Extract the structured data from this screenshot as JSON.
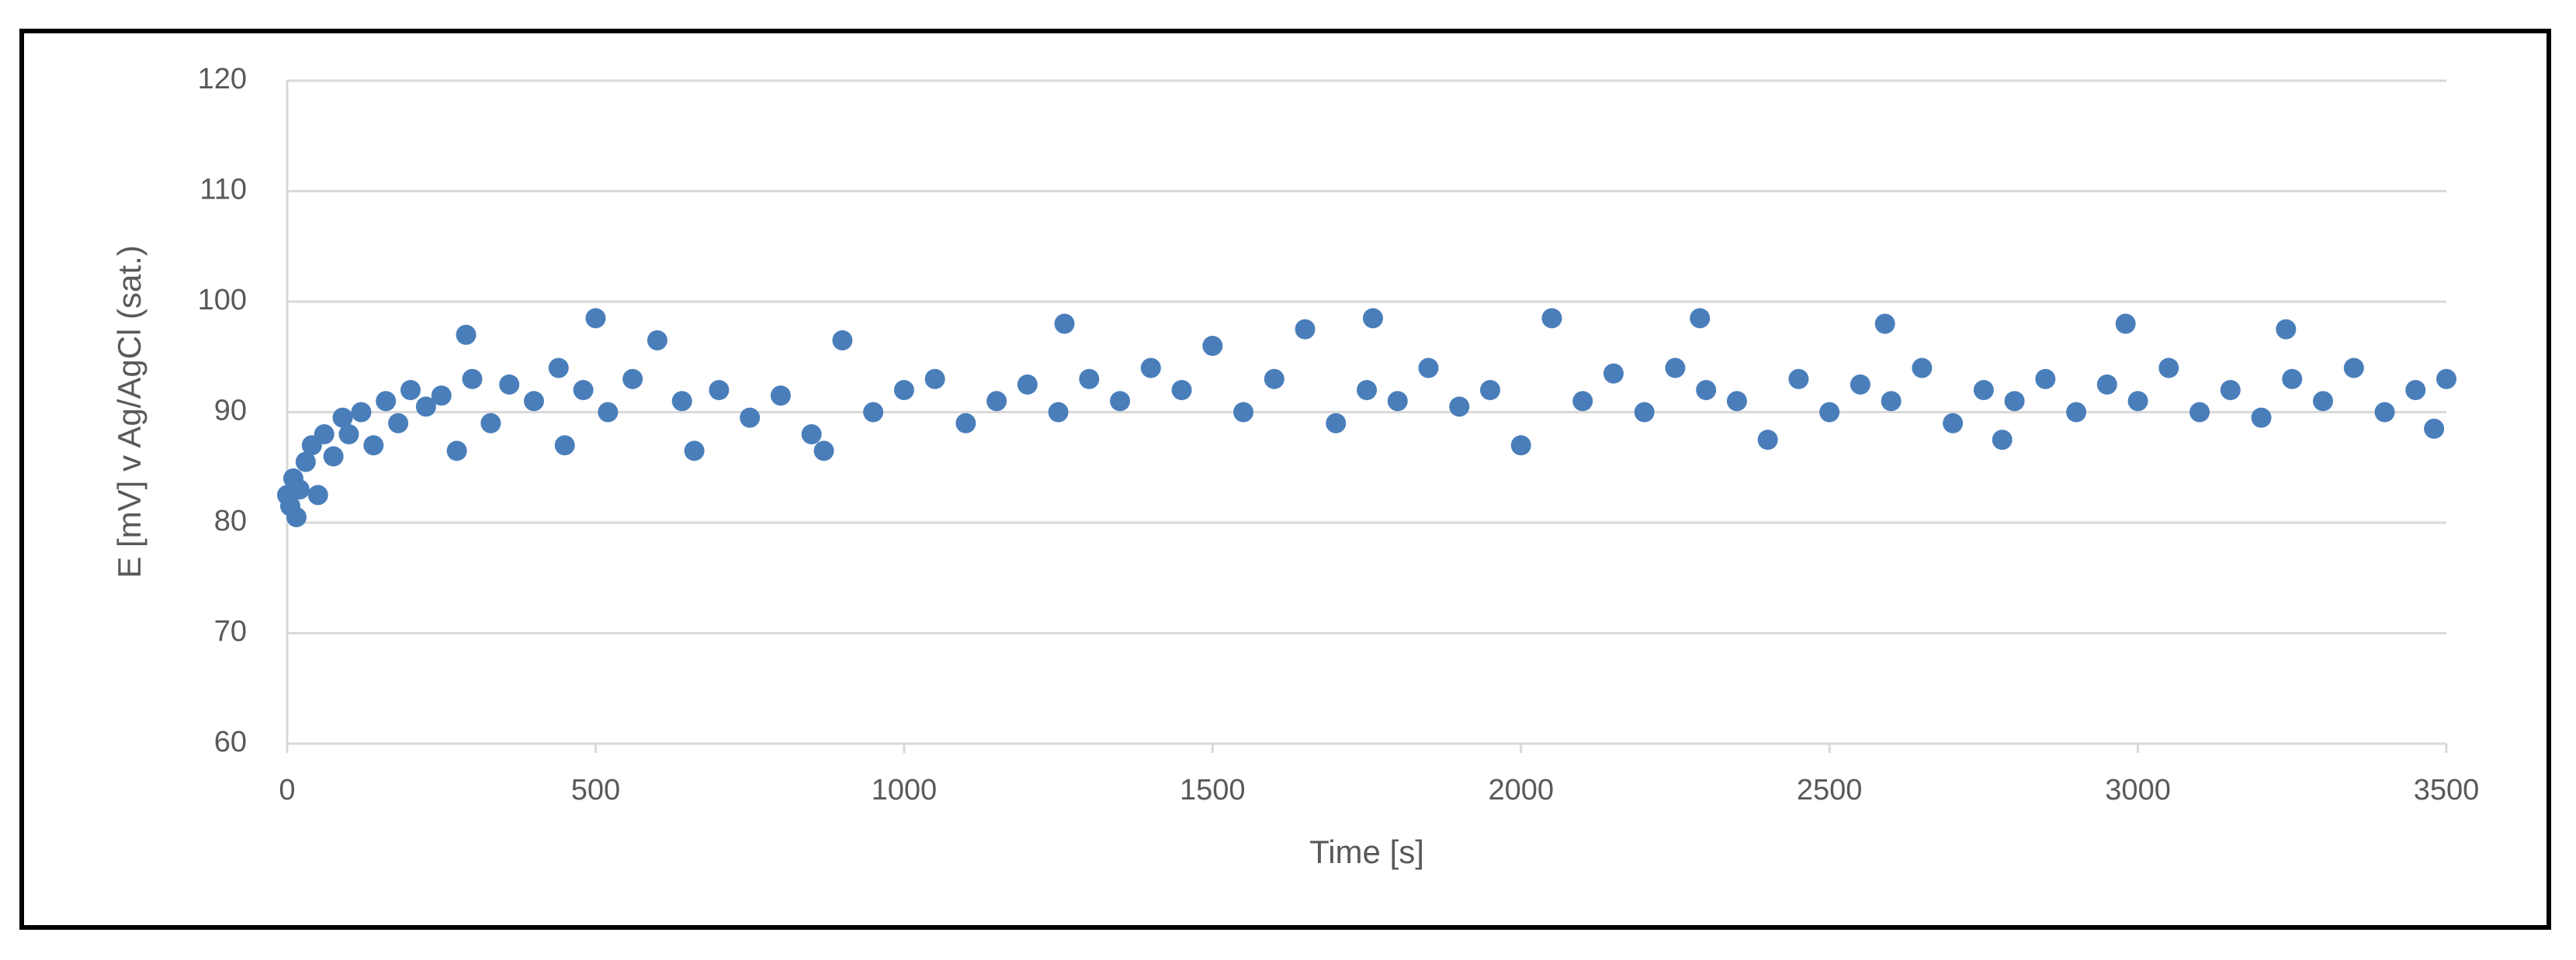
{
  "chart_data": {
    "type": "scatter",
    "xlabel": "Time [s]",
    "ylabel": "E [mV] v Ag/AgCl (sat.)",
    "color": "#4a7ebb",
    "grid": true,
    "xlim": [
      0,
      3500
    ],
    "xticks": [
      0,
      500,
      1000,
      1500,
      2000,
      2500,
      3000,
      3500
    ],
    "ylim": [
      60,
      120
    ],
    "yticks": [
      60,
      70,
      80,
      90,
      100,
      110,
      120
    ],
    "x": [
      0,
      5,
      10,
      15,
      20,
      30,
      40,
      50,
      60,
      75,
      90,
      100,
      120,
      140,
      160,
      180,
      200,
      225,
      250,
      275,
      290,
      300,
      330,
      360,
      400,
      440,
      450,
      480,
      500,
      520,
      560,
      600,
      640,
      660,
      700,
      750,
      800,
      850,
      870,
      900,
      950,
      1000,
      1050,
      1100,
      1150,
      1200,
      1250,
      1260,
      1300,
      1350,
      1400,
      1450,
      1500,
      1550,
      1600,
      1650,
      1700,
      1750,
      1760,
      1800,
      1850,
      1900,
      1950,
      2000,
      2050,
      2100,
      2150,
      2200,
      2250,
      2290,
      2300,
      2350,
      2400,
      2450,
      2500,
      2550,
      2590,
      2600,
      2650,
      2700,
      2750,
      2780,
      2800,
      2850,
      2900,
      2950,
      2980,
      3000,
      3050,
      3100,
      3150,
      3200,
      3240,
      3250,
      3300,
      3350,
      3400,
      3450,
      3480,
      3500
    ],
    "values": [
      82.5,
      81.5,
      84,
      80.5,
      83,
      85.5,
      87,
      82.5,
      88,
      86,
      89.5,
      88,
      90,
      87,
      91,
      89,
      92,
      90.5,
      91.5,
      86.5,
      97,
      93,
      89,
      92.5,
      91,
      94,
      87,
      92,
      98.5,
      90,
      93,
      96.5,
      91,
      86.5,
      92,
      89.5,
      91.5,
      88,
      86.5,
      96.5,
      90,
      92,
      93,
      89,
      91,
      92.5,
      90,
      98,
      93,
      91,
      94,
      92,
      96,
      90,
      93,
      97.5,
      89,
      92,
      98.5,
      91,
      94,
      90.5,
      92,
      87,
      98.5,
      91,
      93.5,
      90,
      94,
      98.5,
      92,
      91,
      87.5,
      93,
      90,
      92.5,
      98,
      91,
      94,
      89,
      92,
      87.5,
      91,
      93,
      90,
      92.5,
      98,
      91,
      94,
      90,
      92,
      89.5,
      97.5,
      93,
      91,
      94,
      90,
      92,
      88.5,
      93
    ]
  }
}
